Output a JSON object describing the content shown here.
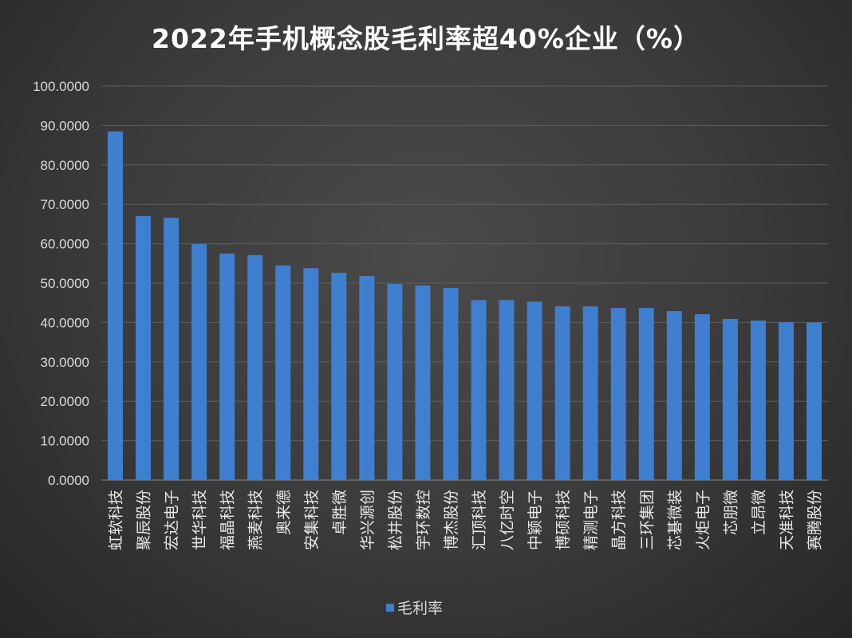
{
  "chart_data": {
    "type": "bar",
    "title": "2022年手机概念股毛利率超40%企业（%）",
    "categories": [
      "虹软科技",
      "聚辰股份",
      "宏达电子",
      "世华科技",
      "福晶科技",
      "燕麦科技",
      "奥来德",
      "安集科技",
      "卓胜微",
      "华兴源创",
      "松井股份",
      "宇环数控",
      "博杰股份",
      "汇顶科技",
      "八亿时空",
      "中颖电子",
      "博硕科技",
      "精测电子",
      "晶方科技",
      "三环集团",
      "芯碁微装",
      "火炬电子",
      "芯朋微",
      "立昂微",
      "天准科技",
      "赛腾股份"
    ],
    "series": [
      {
        "name": "毛利率",
        "values": [
          88.5,
          67.0,
          66.6,
          59.9,
          57.5,
          57.1,
          54.5,
          53.8,
          52.6,
          51.8,
          49.8,
          49.4,
          48.8,
          45.7,
          45.7,
          45.3,
          44.1,
          44.1,
          43.7,
          43.7,
          42.9,
          42.1,
          40.9,
          40.5,
          40.1,
          40.0
        ]
      }
    ],
    "yticks": [
      "0.0000",
      "10.0000",
      "20.0000",
      "30.0000",
      "40.0000",
      "50.0000",
      "60.0000",
      "70.0000",
      "80.0000",
      "90.0000",
      "100.0000"
    ],
    "ylim": [
      0,
      100
    ],
    "grid": true,
    "legend": "bottom",
    "bar_color": "#3f7fd0"
  }
}
